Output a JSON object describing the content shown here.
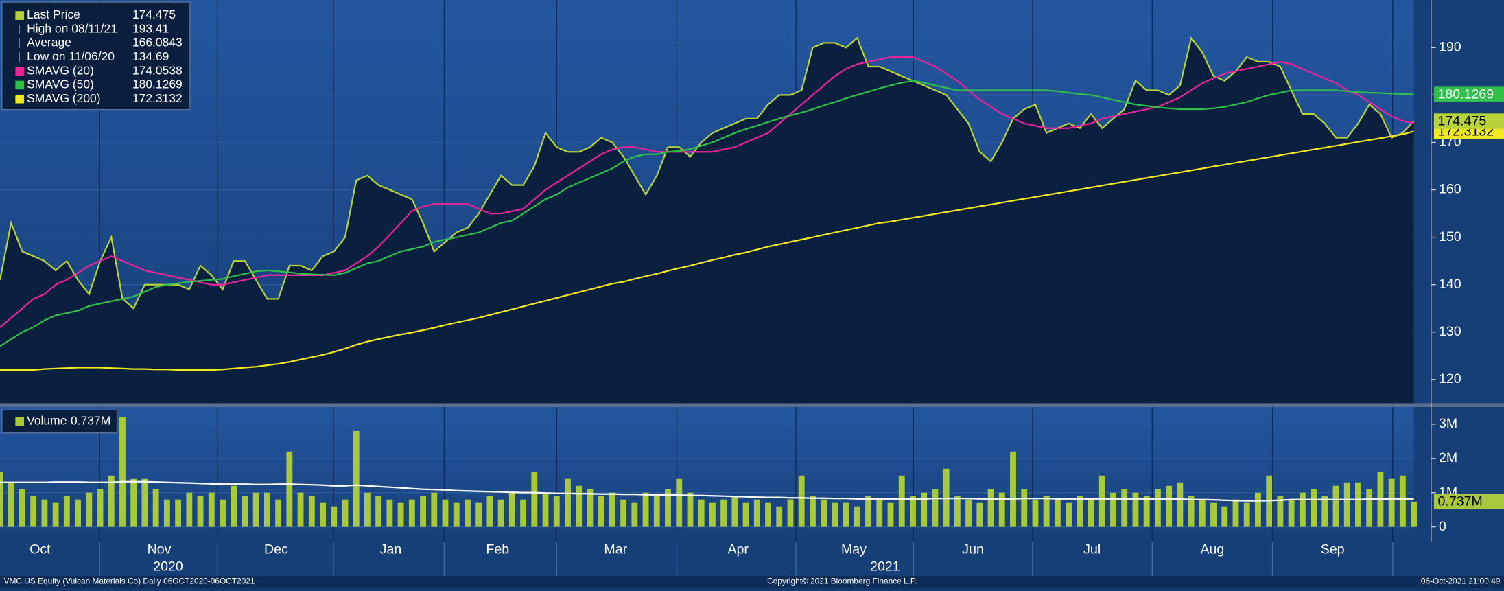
{
  "chart_data": [
    {
      "type": "line",
      "xlim": [
        0,
        127
      ],
      "ylim": [
        115,
        200
      ],
      "yticks": [
        120,
        130,
        140,
        150,
        160,
        170,
        180,
        190
      ],
      "xticks": [
        {
          "value": 3.6,
          "label": "Oct"
        },
        {
          "value": 14.3,
          "label": "Nov"
        },
        {
          "value": 24.8,
          "label": "Dec"
        },
        {
          "value": 35.1,
          "label": "Jan"
        },
        {
          "value": 44.7,
          "label": "Feb"
        },
        {
          "value": 55.3,
          "label": "Mar"
        },
        {
          "value": 66.3,
          "label": "Apr"
        },
        {
          "value": 76.7,
          "label": "May"
        },
        {
          "value": 87.4,
          "label": "Jun"
        },
        {
          "value": 98.1,
          "label": "Jul"
        },
        {
          "value": 108.9,
          "label": "Aug"
        },
        {
          "value": 119.7,
          "label": "Sep"
        }
      ],
      "years": [
        {
          "value": 15.1,
          "label": "2020"
        },
        {
          "value": 79.5,
          "label": "2021"
        }
      ],
      "grid": true,
      "stats": [
        {
          "label": "High on 08/11/21",
          "value": 193.41
        },
        {
          "label": "Average",
          "value": 166.0843
        },
        {
          "label": "Low on 11/06/20",
          "value": 134.69
        }
      ],
      "series": [
        {
          "name": "Last Price",
          "color": "#b8d43a",
          "area": true,
          "values": [
            141,
            153,
            147,
            146,
            145,
            143,
            145,
            141,
            138,
            145,
            150,
            137,
            135,
            140,
            140,
            140,
            140,
            139,
            144,
            142,
            139,
            145,
            145,
            141,
            137,
            137,
            144,
            144,
            143,
            146,
            147,
            150,
            162,
            163,
            161,
            160,
            159,
            158,
            153,
            147,
            149,
            151,
            152,
            155,
            159,
            163,
            161,
            161,
            165,
            172,
            169,
            168,
            168,
            169,
            171,
            170,
            167,
            163,
            159,
            163,
            169,
            169,
            167,
            170,
            172,
            173,
            174,
            175,
            175,
            178,
            180,
            180,
            181,
            190,
            191,
            191,
            190,
            192,
            186,
            186,
            185,
            184,
            183,
            182,
            181,
            180,
            177,
            174,
            168,
            166,
            170,
            175,
            177,
            178,
            172,
            173,
            174,
            173,
            176,
            173,
            175,
            177,
            183,
            181,
            181,
            180,
            182,
            192,
            189,
            184,
            183,
            185,
            188,
            187,
            187,
            186,
            181,
            176,
            176,
            174,
            171,
            171,
            174,
            178,
            176,
            171,
            172,
            174.475
          ]
        },
        {
          "name": "SMAVG (20)",
          "color": "#e8259a",
          "values": [
            131,
            133,
            135,
            137,
            138,
            140,
            141,
            142.5,
            144,
            145,
            146,
            145,
            144,
            143,
            142.5,
            142,
            141.5,
            141,
            140.5,
            140,
            140,
            140.5,
            141,
            141.5,
            142,
            142,
            142,
            142,
            142,
            142,
            142.5,
            143,
            144.5,
            146,
            148,
            150.5,
            153,
            155.5,
            156.5,
            157,
            157,
            157,
            157,
            156,
            155,
            155,
            155.5,
            156,
            158,
            160,
            161.5,
            163,
            164.5,
            166,
            167.5,
            168.5,
            169,
            169,
            168.5,
            168,
            168,
            168,
            168,
            168,
            168,
            168.5,
            169,
            170,
            171,
            172,
            174,
            176,
            178,
            180,
            182,
            184,
            185.5,
            186.5,
            187,
            187.5,
            188,
            188,
            188,
            187,
            186,
            184.5,
            183,
            181,
            179,
            177.5,
            176,
            175,
            174,
            173.5,
            173,
            173,
            173,
            173.5,
            174,
            175,
            175.5,
            176,
            176.5,
            177,
            177.5,
            178.5,
            179.5,
            181,
            182.5,
            183.5,
            184.5,
            185,
            185.5,
            186,
            186.5,
            187,
            186.5,
            185.5,
            184.5,
            183.5,
            182.5,
            181,
            180,
            178.5,
            177,
            175.5,
            174.5,
            174.0538
          ]
        },
        {
          "name": "SMAVG (50)",
          "color": "#2fbf4a",
          "values": [
            127,
            128.5,
            130,
            131,
            132.5,
            133.5,
            134,
            134.5,
            135.5,
            136,
            136.5,
            137,
            137.5,
            138.5,
            139.5,
            140,
            140.3,
            140.6,
            140.8,
            141,
            141.2,
            141.8,
            142.3,
            142.8,
            143,
            142.8,
            142.6,
            142.3,
            142.2,
            142.1,
            142,
            142.5,
            143.5,
            144.5,
            145,
            146,
            147,
            147.5,
            148,
            149,
            149.5,
            150,
            150.5,
            151,
            152,
            153,
            153.5,
            155,
            156.5,
            158,
            159,
            160.5,
            161.5,
            162.5,
            163.5,
            164.5,
            166,
            167,
            167.5,
            167.5,
            168,
            168.2,
            168.6,
            169.3,
            170,
            171,
            172,
            172.8,
            173.5,
            174.3,
            175,
            175.7,
            176.3,
            177,
            177.8,
            178.5,
            179.3,
            180,
            180.7,
            181.4,
            182,
            182.6,
            183,
            182.6,
            182,
            181.5,
            181,
            181,
            181,
            181,
            181,
            181,
            181,
            181,
            181,
            180.8,
            180.5,
            180.2,
            180,
            179.5,
            179,
            178.5,
            178,
            177.7,
            177.4,
            177.2,
            177,
            177,
            177,
            177.2,
            177.5,
            178,
            178.5,
            179.3,
            180,
            180.5,
            181,
            181,
            181,
            181,
            181,
            180.8,
            180.6,
            180.5,
            180.4,
            180.3,
            180.2,
            180.1269
          ]
        },
        {
          "name": "SMAVG (200)",
          "color": "#f2e822",
          "values": [
            122,
            122,
            122,
            122,
            122.2,
            122.3,
            122.4,
            122.5,
            122.5,
            122.5,
            122.4,
            122.3,
            122.2,
            122.2,
            122.1,
            122.1,
            122,
            122,
            122,
            122,
            122.1,
            122.3,
            122.5,
            122.7,
            123,
            123.3,
            123.7,
            124.2,
            124.7,
            125.2,
            125.8,
            126.5,
            127.3,
            128,
            128.5,
            129,
            129.5,
            129.9,
            130.4,
            130.9,
            131.5,
            132,
            132.5,
            133,
            133.6,
            134.2,
            134.8,
            135.4,
            136,
            136.6,
            137.2,
            137.8,
            138.4,
            139,
            139.6,
            140.2,
            140.6,
            141.2,
            141.8,
            142.3,
            142.9,
            143.5,
            144,
            144.6,
            145.2,
            145.7,
            146.3,
            146.8,
            147.4,
            148,
            148.5,
            149,
            149.5,
            150,
            150.5,
            151,
            151.5,
            152,
            152.5,
            153,
            153.3,
            153.7,
            154.1,
            154.5,
            154.9,
            155.3,
            155.7,
            156.1,
            156.5,
            156.9,
            157.3,
            157.7,
            158.1,
            158.5,
            158.9,
            159.3,
            159.7,
            160.1,
            160.5,
            160.9,
            161.3,
            161.7,
            162.1,
            162.5,
            162.9,
            163.3,
            163.7,
            164.1,
            164.5,
            164.9,
            165.3,
            165.7,
            166.1,
            166.5,
            166.9,
            167.3,
            167.7,
            168.1,
            168.5,
            168.9,
            169.3,
            169.7,
            170.1,
            170.5,
            170.9,
            171.3,
            171.7,
            172.3132
          ]
        }
      ]
    },
    {
      "type": "bar",
      "xlim": [
        0,
        127
      ],
      "ylim": [
        -0.45,
        3.5
      ],
      "yticks": [
        0,
        {
          "value": 1,
          "label": "1M"
        },
        {
          "value": 2,
          "label": "2M"
        },
        {
          "value": 3,
          "label": "3M"
        }
      ],
      "series": [
        {
          "name": "Volume",
          "color": "#a8c93c",
          "last_label": "0.737M",
          "values": [
            1.6,
            1.3,
            1.1,
            0.9,
            0.8,
            0.7,
            0.9,
            0.8,
            1.0,
            1.1,
            1.5,
            3.2,
            1.4,
            1.4,
            1.1,
            0.8,
            0.8,
            1.0,
            0.9,
            1.0,
            0.8,
            1.2,
            0.9,
            1.0,
            1.0,
            0.8,
            2.2,
            1.0,
            0.9,
            0.7,
            0.6,
            0.8,
            2.8,
            1.0,
            0.9,
            0.8,
            0.7,
            0.8,
            0.9,
            1.0,
            0.8,
            0.7,
            0.8,
            0.7,
            0.9,
            0.8,
            1.0,
            0.8,
            1.6,
            1.0,
            0.9,
            1.4,
            1.2,
            1.1,
            0.9,
            1.0,
            0.8,
            0.7,
            1.0,
            0.9,
            1.1,
            1.4,
            1.0,
            0.8,
            0.7,
            0.8,
            0.9,
            0.7,
            0.8,
            0.7,
            0.6,
            0.8,
            1.5,
            0.9,
            0.8,
            0.7,
            0.7,
            0.6,
            0.9,
            0.8,
            0.7,
            1.5,
            0.9,
            1.0,
            1.1,
            1.7,
            0.9,
            0.8,
            0.7,
            1.1,
            1.0,
            2.2,
            1.1,
            0.8,
            0.9,
            0.8,
            0.7,
            0.9,
            0.8,
            1.5,
            1.0,
            1.1,
            1.0,
            0.9,
            1.1,
            1.2,
            1.3,
            0.9,
            0.8,
            0.7,
            0.6,
            0.8,
            0.7,
            1.0,
            1.5,
            0.9,
            0.8,
            1.0,
            1.1,
            0.9,
            1.2,
            1.3,
            1.3,
            1.1,
            1.6,
            1.4,
            1.5,
            0.737
          ]
        },
        {
          "type": "line",
          "color": "#ffffff",
          "values": [
            1.3,
            1.3,
            1.3,
            1.3,
            1.3,
            1.31,
            1.31,
            1.31,
            1.3,
            1.3,
            1.3,
            1.32,
            1.32,
            1.32,
            1.31,
            1.3,
            1.29,
            1.28,
            1.27,
            1.26,
            1.25,
            1.25,
            1.25,
            1.24,
            1.24,
            1.25,
            1.25,
            1.24,
            1.23,
            1.22,
            1.2,
            1.2,
            1.22,
            1.2,
            1.18,
            1.16,
            1.14,
            1.12,
            1.1,
            1.09,
            1.08,
            1.06,
            1.05,
            1.04,
            1.03,
            1.02,
            1.01,
            1.0,
            1.0,
            0.99,
            0.98,
            0.98,
            0.97,
            0.97,
            0.96,
            0.96,
            0.95,
            0.95,
            0.94,
            0.94,
            0.93,
            0.93,
            0.92,
            0.92,
            0.91,
            0.9,
            0.89,
            0.88,
            0.87,
            0.86,
            0.86,
            0.85,
            0.85,
            0.84,
            0.84,
            0.83,
            0.83,
            0.82,
            0.82,
            0.82,
            0.82,
            0.82,
            0.82,
            0.82,
            0.83,
            0.83,
            0.83,
            0.83,
            0.82,
            0.82,
            0.82,
            0.82,
            0.83,
            0.83,
            0.83,
            0.82,
            0.82,
            0.82,
            0.82,
            0.82,
            0.82,
            0.82,
            0.82,
            0.82,
            0.82,
            0.81,
            0.81,
            0.8,
            0.8,
            0.79,
            0.78,
            0.77,
            0.76,
            0.76,
            0.77,
            0.78,
            0.8,
            0.8,
            0.8,
            0.8,
            0.8,
            0.8,
            0.8,
            0.81,
            0.81,
            0.82,
            0.82,
            0.82
          ]
        }
      ]
    }
  ],
  "footer": {
    "left": "VMC US Equity (Vulcan Materials Co)  Daily 06OCT2020-06OCT2021",
    "center": "Copyright© 2021 Bloomberg Finance L.P.",
    "right": "06-Oct-2021 21:00:49"
  }
}
